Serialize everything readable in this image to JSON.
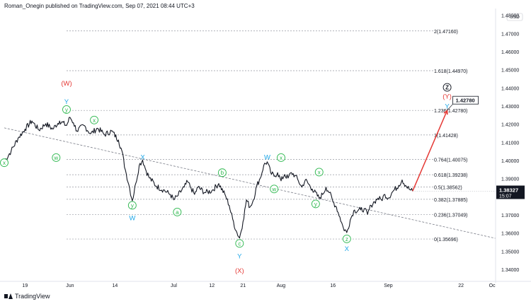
{
  "header": {
    "text": "Roman_Onegin published on TradingView.com, Sep 07, 2021 08:44 UTC+3"
  },
  "footer": {
    "brand": "TradingView"
  },
  "currency": "USD",
  "price_badge": {
    "price": "1.38327",
    "time": "15:07"
  },
  "colors": {
    "red": "#e53935",
    "blue": "#1ea7e8",
    "green": "#2eb84f",
    "black": "#131722",
    "grid": "#9598a1",
    "badge": "#131722"
  },
  "chart_data": {
    "type": "line",
    "title": "",
    "ylim": [
      1.3336,
      1.4832
    ],
    "y_ticks": [
      1.34,
      1.35,
      1.36,
      1.37,
      1.38,
      1.39,
      1.4,
      1.41,
      1.42,
      1.43,
      1.44,
      1.45,
      1.46,
      1.47,
      1.48
    ],
    "y_tick_labels": [
      "1.34000",
      "1.35000",
      "1.36000",
      "1.37000",
      "1.38000",
      "1.39000",
      "1.40000",
      "1.41000",
      "1.42000",
      "1.43000",
      "1.44000",
      "1.45000",
      "1.46000",
      "1.47000",
      "1.48000"
    ],
    "x_tick_labels": [
      {
        "label": "19",
        "d": -13
      },
      {
        "label": "Jun",
        "d": 0
      },
      {
        "label": "14",
        "d": 13
      },
      {
        "label": "Jul",
        "d": 30
      },
      {
        "label": "12",
        "d": 41
      },
      {
        "label": "21",
        "d": 50
      },
      {
        "label": "Aug",
        "d": 61
      },
      {
        "label": "16",
        "d": 76
      },
      {
        "label": "Sep",
        "d": 92
      },
      {
        "label": "22",
        "d": 113
      },
      {
        "label": "Oc",
        "d": 122
      }
    ],
    "x_range": [
      -19,
      123
    ],
    "fib_levels": [
      {
        "label": "2(1.47160)",
        "value": 1.4716
      },
      {
        "label": "1.618(1.44970)",
        "value": 1.4497
      },
      {
        "label": "1.236(1.42780)",
        "value": 1.4278
      },
      {
        "label": "1(1.41428)",
        "value": 1.41428
      },
      {
        "label": "0.764(1.40075)",
        "value": 1.40075
      },
      {
        "label": "0.618(1.39238)",
        "value": 1.39238
      },
      {
        "label": "0.5(1.38562)",
        "value": 1.38562
      },
      {
        "label": "0.382(1.37885)",
        "value": 1.37885
      },
      {
        "label": "0.236(1.37049)",
        "value": 1.37049
      },
      {
        "label": "0(1.35696)",
        "value": 1.35696
      }
    ],
    "target_label": "1.42780",
    "series": [
      {
        "points": [
          [
            -19,
            1.3995
          ],
          [
            -17,
            1.4055
          ],
          [
            -15,
            1.4125
          ],
          [
            -13,
            1.4175
          ],
          [
            -11,
            1.422
          ],
          [
            -9,
            1.417
          ],
          [
            -7,
            1.4205
          ],
          [
            -5,
            1.4175
          ],
          [
            -3,
            1.422
          ],
          [
            -1,
            1.4195
          ],
          [
            0,
            1.424
          ],
          [
            1,
            1.421
          ],
          [
            2,
            1.4165
          ],
          [
            4,
            1.4195
          ],
          [
            6,
            1.415
          ],
          [
            8,
            1.418
          ],
          [
            10,
            1.4145
          ],
          [
            12,
            1.4165
          ],
          [
            14,
            1.4115
          ],
          [
            15,
            1.4055
          ],
          [
            16,
            1.395
          ],
          [
            17,
            1.387
          ],
          [
            18,
            1.378
          ],
          [
            19,
            1.3875
          ],
          [
            20,
            1.3975
          ],
          [
            21,
            1.4005
          ],
          [
            22,
            1.3945
          ],
          [
            23,
            1.3905
          ],
          [
            25,
            1.386
          ],
          [
            27,
            1.384
          ],
          [
            29,
            1.3815
          ],
          [
            30,
            1.3785
          ],
          [
            31,
            1.3805
          ],
          [
            33,
            1.3855
          ],
          [
            34,
            1.3885
          ],
          [
            35,
            1.385
          ],
          [
            36,
            1.3815
          ],
          [
            37,
            1.3855
          ],
          [
            39,
            1.3825
          ],
          [
            41,
            1.3835
          ],
          [
            43,
            1.3875
          ],
          [
            45,
            1.3805
          ],
          [
            46,
            1.3755
          ],
          [
            47,
            1.368
          ],
          [
            48,
            1.3615
          ],
          [
            49,
            1.3575
          ],
          [
            50,
            1.3665
          ],
          [
            51,
            1.3785
          ],
          [
            52,
            1.3745
          ],
          [
            53,
            1.3785
          ],
          [
            54,
            1.3865
          ],
          [
            55,
            1.3905
          ],
          [
            56,
            1.3975
          ],
          [
            57,
            1.3995
          ],
          [
            58,
            1.3935
          ],
          [
            59,
            1.3915
          ],
          [
            60,
            1.3935
          ],
          [
            61,
            1.389
          ],
          [
            62,
            1.3925
          ],
          [
            63,
            1.3905
          ],
          [
            64,
            1.3935
          ],
          [
            65,
            1.392
          ],
          [
            66,
            1.389
          ],
          [
            67,
            1.3855
          ],
          [
            68,
            1.3895
          ],
          [
            70,
            1.3845
          ],
          [
            72,
            1.3795
          ],
          [
            73,
            1.3815
          ],
          [
            74,
            1.3855
          ],
          [
            75,
            1.3825
          ],
          [
            76,
            1.3775
          ],
          [
            77,
            1.3745
          ],
          [
            78,
            1.369
          ],
          [
            79,
            1.363
          ],
          [
            80,
            1.3605
          ],
          [
            81,
            1.3675
          ],
          [
            82,
            1.3725
          ],
          [
            84,
            1.373
          ],
          [
            85,
            1.3735
          ],
          [
            86,
            1.3705
          ],
          [
            87,
            1.3755
          ],
          [
            88,
            1.3775
          ],
          [
            89,
            1.3795
          ],
          [
            90,
            1.3785
          ],
          [
            91,
            1.3815
          ],
          [
            92,
            1.3795
          ],
          [
            93,
            1.3825
          ],
          [
            95,
            1.3865
          ],
          [
            96,
            1.3895
          ],
          [
            97,
            1.3865
          ],
          [
            98,
            1.3845
          ],
          [
            99,
            1.3833
          ]
        ]
      }
    ],
    "trendline": {
      "from": [
        -19,
        1.4182
      ],
      "to": [
        123,
        1.3573
      ]
    },
    "projection": {
      "from": [
        99,
        1.3833
      ],
      "to": [
        109,
        1.4278
      ]
    },
    "annotations": [
      {
        "text": "(W)",
        "color": "red",
        "d": -1,
        "y": 1.4426
      },
      {
        "text": "Y",
        "color": "blue",
        "d": -1,
        "y": 1.4325
      },
      {
        "text": "y",
        "color": "green",
        "d": -1,
        "y": 1.4283,
        "circle": true
      },
      {
        "text": "x",
        "color": "green",
        "d": -19,
        "y": 1.399,
        "circle": true
      },
      {
        "text": "x",
        "color": "green",
        "d": 7,
        "y": 1.4225,
        "circle": true
      },
      {
        "text": "w",
        "color": "green",
        "d": -4,
        "y": 1.4018,
        "circle": true
      },
      {
        "text": "X",
        "color": "blue",
        "d": 21,
        "y": 1.402
      },
      {
        "text": "y",
        "color": "green",
        "d": 18,
        "y": 1.3755,
        "circle": true
      },
      {
        "text": "W",
        "color": "blue",
        "d": 18,
        "y": 1.3685
      },
      {
        "text": "a",
        "color": "green",
        "d": 31,
        "y": 1.3718,
        "circle": true
      },
      {
        "text": "b",
        "color": "green",
        "d": 44,
        "y": 1.3935,
        "circle": true
      },
      {
        "text": "c",
        "color": "green",
        "d": 49,
        "y": 1.3545,
        "circle": true
      },
      {
        "text": "Y",
        "color": "blue",
        "d": 49,
        "y": 1.3475
      },
      {
        "text": "(X)",
        "color": "red",
        "d": 49,
        "y": 1.3395
      },
      {
        "text": "W",
        "color": "blue",
        "d": 57,
        "y": 1.402
      },
      {
        "text": "x",
        "color": "green",
        "d": 61,
        "y": 1.4018,
        "circle": true
      },
      {
        "text": "w",
        "color": "green",
        "d": 59,
        "y": 1.3845,
        "circle": true
      },
      {
        "text": "x",
        "color": "green",
        "d": 72,
        "y": 1.3938,
        "circle": true
      },
      {
        "text": "y",
        "color": "green",
        "d": 71,
        "y": 1.3763,
        "circle": true
      },
      {
        "text": "z",
        "color": "green",
        "d": 80,
        "y": 1.357,
        "circle": true
      },
      {
        "text": "X",
        "color": "blue",
        "d": 80,
        "y": 1.3515
      },
      {
        "text": "Z",
        "color": "black",
        "d": 109,
        "y": 1.4405,
        "circle": true
      },
      {
        "text": "(Y)",
        "color": "red",
        "d": 109,
        "y": 1.4355
      },
      {
        "text": "Y",
        "color": "blue",
        "d": 109,
        "y": 1.43
      }
    ]
  }
}
